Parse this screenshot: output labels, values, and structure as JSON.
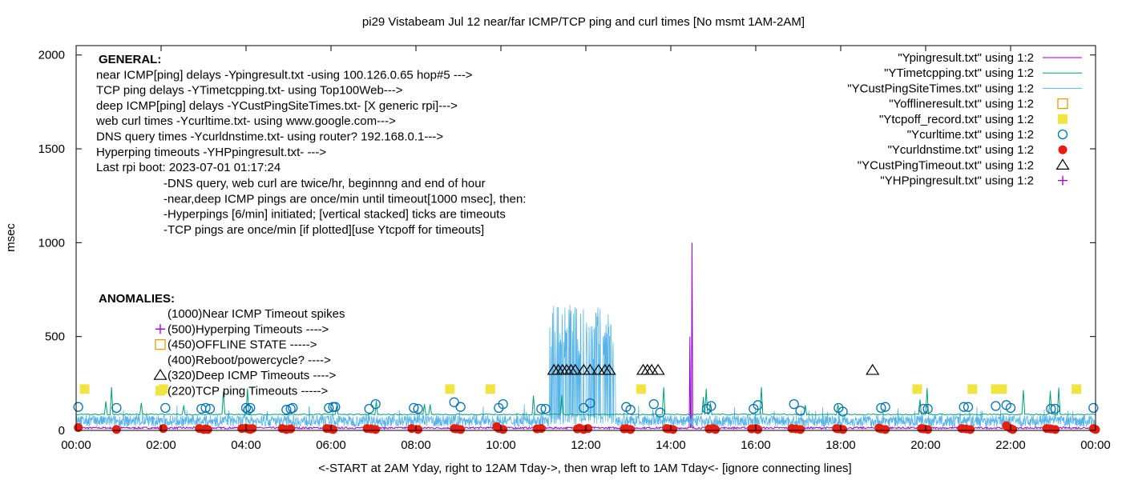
{
  "chart_data": {
    "type": "line",
    "title": "pi29 Vistabeam Jul 12  near/far ICMP/TCP ping and curl times [No msmt 1AM-2AM]",
    "xlabel": "<-START at 2AM Yday, right to 12AM Tday->, then wrap left to 1AM Tday<- [ignore connecting lines]",
    "ylabel": "msec",
    "xlim": [
      0,
      24
    ],
    "ylim": [
      0,
      2050
    ],
    "x_ticks": [
      "00:00",
      "02:00",
      "04:00",
      "06:00",
      "08:00",
      "10:00",
      "12:00",
      "14:00",
      "16:00",
      "18:00",
      "20:00",
      "22:00",
      "00:00"
    ],
    "y_ticks": [
      "0",
      "500",
      "1000",
      "1500",
      "2000"
    ],
    "y_tick_values": [
      0,
      500,
      1000,
      1500,
      2000
    ],
    "legend_position": "top-right",
    "legend": [
      {
        "label": "\"Ypingresult.txt\" using 1:2",
        "kind": "line",
        "color": "#9400d3"
      },
      {
        "label": "\"YTimetcpping.txt\" using 1:2",
        "kind": "line",
        "color": "#009e73"
      },
      {
        "label": "\"YCustPingSiteTimes.txt\" using 1:2",
        "kind": "line",
        "color": "#56b4e9"
      },
      {
        "label": "\"Yofflineresult.txt\" using 1:2",
        "kind": "open-square",
        "color": "#e69f00"
      },
      {
        "label": "\"Ytcpoff_record.txt\" using 1:2",
        "kind": "filled-square",
        "color": "#f0e442"
      },
      {
        "label": "\"Ycurltime.txt\" using 1:2",
        "kind": "open-circle",
        "color": "#0072b2"
      },
      {
        "label": "\"Ycurldnstime.txt\" using 1:2",
        "kind": "filled-circle",
        "color": "#e51e10"
      },
      {
        "label": "\"YCustPingTimeout.txt\" using 1:2",
        "kind": "open-triangle",
        "color": "#000000"
      },
      {
        "label": "\"YHPpingresult.txt\" using 1:2",
        "kind": "plus",
        "color": "#9400d3"
      }
    ],
    "general_lines": [
      "GENERAL:",
      "near ICMP[ping] delays -Ypingresult.txt -using 100.126.0.65 hop#5 --->",
      "TCP ping delays -YTimetcpping.txt- using Top100Web--->",
      "deep ICMP[ping] delays -YCustPingSiteTimes.txt- [X generic rpi]--->",
      "web curl times -Ycurltime.txt- using www.google.com--->",
      "DNS query times -Ycurldnstime.txt- using router? 192.168.0.1--->",
      "Hyperping timeouts -YHPpingresult.txt- --->",
      "Last rpi boot: 2023-07-01 01:17:24"
    ],
    "notes_lines": [
      "-DNS query, web curl are twice/hr, beginnng and end of hour",
      "-near,deep ICMP pings are once/min until timeout[1000 msec], then:",
      "  -Hyperpings [6/min] initiated; [vertical stacked] ticks are timeouts",
      "-TCP pings are once/min [if plotted][use Ytcpoff for timeouts]"
    ],
    "anomalies_title": "ANOMALIES:",
    "anomalies": [
      {
        "text": "(1000)Near ICMP Timeout spikes",
        "marker": "none",
        "y": 1000
      },
      {
        "text": "(500)Hyperping Timeouts ---->",
        "marker": "plus",
        "y": 500
      },
      {
        "text": "(450)OFFLINE STATE ----->",
        "marker": "open-square",
        "y": 450
      },
      {
        "text": "(400)Reboot/powercycle? ---->",
        "marker": "none",
        "y": 400
      },
      {
        "text": "(320)Deep ICMP Timeouts ---->",
        "marker": "open-triangle",
        "y": 320
      },
      {
        "text": "(220)TCP ping Timeouts ----->",
        "marker": "filled-square",
        "y": 220
      }
    ],
    "series": {
      "near_icmp_spike": {
        "x": 14.5,
        "y": 1000
      },
      "near_icmp_small_spike": {
        "x": 14.45,
        "y": 500
      },
      "deep_icmp_burst_window": [
        11.15,
        12.65
      ],
      "deep_icmp_burst_peak": 670,
      "tcp_baseline": 85,
      "tcp_timeouts_x": [
        0.2,
        2.05,
        8.8,
        9.75,
        13.3,
        19.8,
        21.1,
        21.65,
        21.8,
        23.55
      ],
      "tcp_timeouts_y": 220,
      "deep_icmp_timeouts_x": [
        11.25,
        11.35,
        11.45,
        11.55,
        11.65,
        11.75,
        11.95,
        12.1,
        12.3,
        12.45,
        12.55,
        13.35,
        13.45,
        13.55,
        13.7,
        18.75
      ],
      "deep_icmp_timeouts_y": 320,
      "curl_x": [
        0.05,
        0.95,
        2.1,
        2.95,
        3.05,
        3.15,
        4.0,
        4.05,
        4.1,
        4.95,
        5.05,
        5.1,
        5.95,
        6.05,
        6.1,
        6.9,
        7.05,
        7.95,
        8.05,
        8.9,
        9.05,
        9.95,
        10.05,
        10.95,
        11.05,
        11.95,
        12.1,
        12.95,
        13.05,
        13.6,
        13.75,
        14.85,
        14.95,
        15.95,
        16.05,
        16.9,
        17.05,
        17.95,
        18.05,
        18.95,
        19.05,
        19.95,
        20.05,
        20.9,
        21.0,
        21.65,
        21.9,
        22.0,
        22.95,
        23.05,
        23.95
      ],
      "curl_y": [
        125,
        120,
        120,
        115,
        120,
        115,
        120,
        110,
        120,
        110,
        115,
        120,
        120,
        125,
        125,
        115,
        140,
        120,
        115,
        150,
        125,
        120,
        140,
        115,
        115,
        120,
        145,
        125,
        110,
        140,
        95,
        115,
        130,
        115,
        135,
        140,
        105,
        120,
        100,
        120,
        125,
        115,
        115,
        125,
        125,
        130,
        135,
        120,
        115,
        115,
        120
      ],
      "dns_x": [
        0.05,
        0.95,
        2.05,
        2.9,
        3.0,
        3.05,
        3.1,
        3.9,
        4.0,
        4.05,
        4.1,
        4.15,
        4.85,
        4.95,
        5.05,
        5.9,
        6.0,
        6.05,
        6.85,
        6.95,
        7.05,
        7.9,
        8.05,
        8.9,
        8.95,
        9.05,
        9.9,
        9.95,
        10.05,
        10.85,
        10.95,
        11.8,
        11.85,
        11.95,
        12.05,
        12.9,
        12.95,
        13.05,
        13.9,
        13.95,
        14.05,
        14.9,
        15.0,
        15.05,
        15.9,
        16.0,
        16.05,
        16.85,
        16.95,
        17.05,
        17.9,
        17.95,
        18.05,
        18.9,
        18.95,
        19.05,
        19.9,
        19.95,
        20.05,
        20.85,
        20.95,
        21.05,
        21.9,
        22.0,
        22.05,
        22.85,
        22.95,
        23.05,
        23.95,
        24.0
      ],
      "dns_y": [
        15,
        5,
        10,
        10,
        5,
        8,
        5,
        10,
        12,
        8,
        5,
        10,
        10,
        5,
        8,
        10,
        8,
        5,
        10,
        8,
        5,
        10,
        5,
        10,
        8,
        5,
        20,
        10,
        5,
        8,
        10,
        8,
        12,
        5,
        10,
        8,
        10,
        5,
        10,
        8,
        5,
        8,
        10,
        5,
        8,
        10,
        5,
        10,
        8,
        5,
        10,
        8,
        5,
        12,
        8,
        5,
        10,
        8,
        5,
        10,
        8,
        5,
        25,
        10,
        5,
        10,
        8,
        5,
        10,
        5
      ]
    }
  }
}
